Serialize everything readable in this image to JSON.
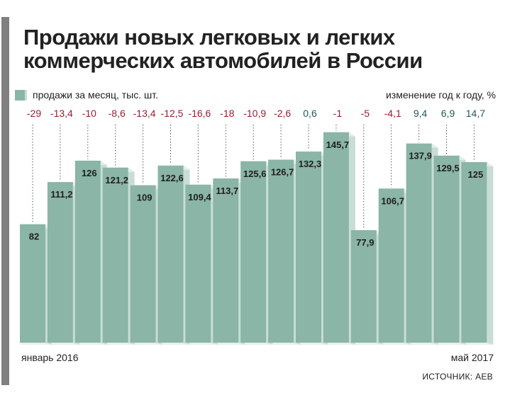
{
  "title_line1": "Продажи новых легковых и легких",
  "title_line2": "коммерческих автомобилей в России",
  "legend_label": "продажи за месяц, тыс. шт.",
  "yoy_label": "изменение год к году, %",
  "source": "ИСТОЧНИК: АЕВ",
  "colors": {
    "bar": "#8ab5a7",
    "bar_side": "#c9ddd6",
    "bar_top": "#e4eeea",
    "negative": "#9b1c2e",
    "positive": "#1f5a55"
  },
  "chart_data": {
    "type": "bar",
    "x_start_label": "январь 2016",
    "x_end_label": "май 2017",
    "values": [
      82,
      111.2,
      126,
      121.2,
      109,
      122.6,
      109.4,
      113.7,
      125.6,
      126.7,
      132.3,
      145.7,
      77.9,
      106.7,
      137.9,
      129.5,
      125
    ],
    "value_labels": [
      "82",
      "111,2",
      "126",
      "121,2",
      "109",
      "122,6",
      "109,4",
      "113,7",
      "125,6",
      "126,7",
      "132,3",
      "145,7",
      "77,9",
      "106,7",
      "137,9",
      "129,5",
      "125"
    ],
    "yoy_change": [
      -29,
      -13.4,
      -10,
      -8.6,
      -13.4,
      -12.5,
      -16.6,
      -18,
      -10.9,
      -2.6,
      0.6,
      -1,
      -5,
      -4.1,
      9.4,
      6.9,
      14.7
    ],
    "yoy_labels": [
      "-29",
      "-13,4",
      "-10",
      "-8,6",
      "-13,4",
      "-12,5",
      "-16,6",
      "-18",
      "-10,9",
      "-2,6",
      "0,6",
      "-1",
      "-5",
      "-4,1",
      "9,4",
      "6,9",
      "14,7"
    ]
  }
}
